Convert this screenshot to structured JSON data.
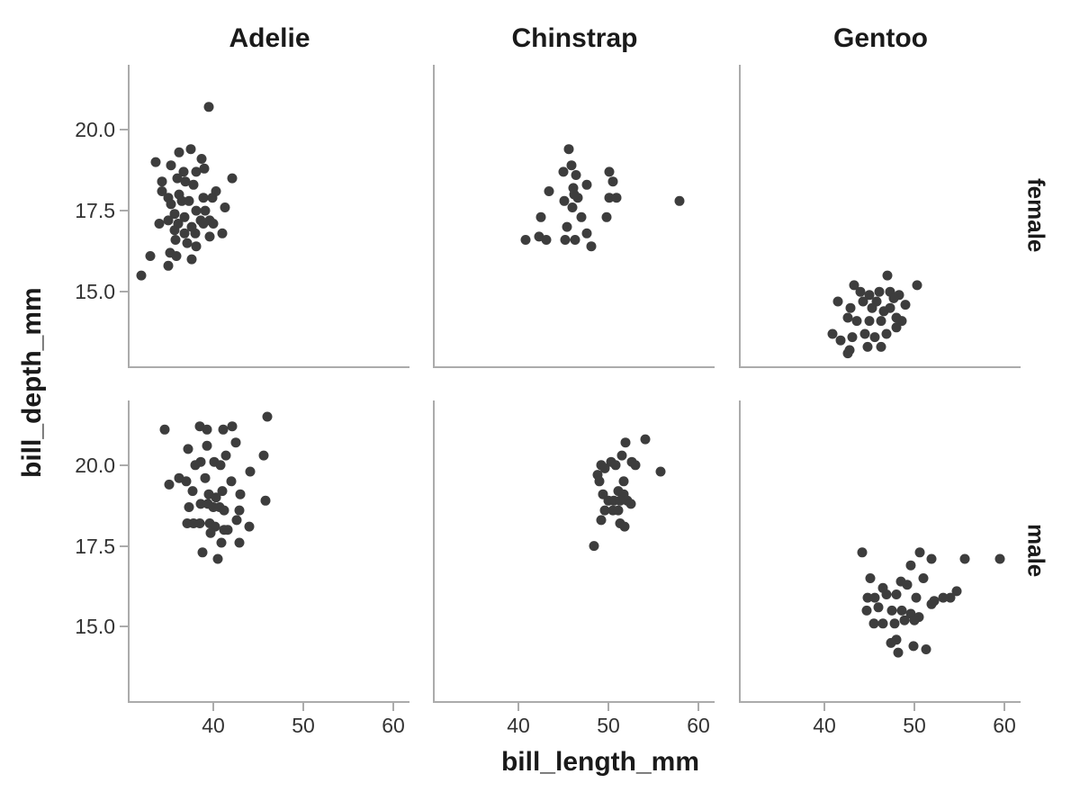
{
  "figure": {
    "background": "#ffffff"
  },
  "chart_data": {
    "type": "scatter",
    "title": "",
    "xlabel": "bill_length_mm",
    "ylabel": "bill_depth_mm",
    "col_facets": [
      "Adelie",
      "Chinstrap",
      "Gentoo"
    ],
    "row_facets": [
      "female",
      "male"
    ],
    "x_domain": [
      30.7,
      61.8
    ],
    "y_domain": [
      12.7,
      22.0
    ],
    "x_ticks": {
      "values": [
        40,
        50,
        60
      ],
      "labels": [
        "40",
        "50",
        "60"
      ]
    },
    "y_ticks": {
      "values": [
        20.0,
        17.5,
        15.0
      ],
      "labels": [
        "20.0",
        "17.5",
        "15.0"
      ]
    },
    "grid": "off",
    "legend": "none",
    "point_color": "#3d3d3d",
    "point_radius": 5.5,
    "axis_color": "#ababab",
    "tick_label_color": "#333333",
    "label_color": "#1a1a1a",
    "panels": [
      {
        "col": "Adelie",
        "row": "female",
        "points": [
          [
            33.6,
            19.0
          ],
          [
            35.3,
            18.9
          ],
          [
            36.2,
            19.3
          ],
          [
            37.5,
            19.4
          ],
          [
            38.7,
            19.1
          ],
          [
            39.0,
            18.8
          ],
          [
            36.7,
            18.7
          ],
          [
            38.1,
            18.7
          ],
          [
            34.3,
            18.4
          ],
          [
            36.0,
            18.5
          ],
          [
            36.9,
            18.4
          ],
          [
            37.8,
            18.3
          ],
          [
            42.1,
            18.5
          ],
          [
            34.3,
            18.1
          ],
          [
            35.0,
            17.9
          ],
          [
            36.2,
            18.0
          ],
          [
            40.3,
            18.1
          ],
          [
            35.3,
            17.7
          ],
          [
            36.5,
            17.8
          ],
          [
            37.3,
            17.8
          ],
          [
            38.9,
            17.9
          ],
          [
            39.9,
            17.9
          ],
          [
            41.3,
            17.6
          ],
          [
            35.7,
            17.4
          ],
          [
            36.8,
            17.3
          ],
          [
            38.1,
            17.5
          ],
          [
            39.1,
            17.5
          ],
          [
            38.6,
            17.2
          ],
          [
            39.6,
            17.2
          ],
          [
            34.0,
            17.1
          ],
          [
            35.0,
            17.2
          ],
          [
            36.1,
            17.1
          ],
          [
            37.6,
            17.0
          ],
          [
            38.9,
            17.1
          ],
          [
            40.0,
            17.1
          ],
          [
            35.7,
            16.9
          ],
          [
            36.8,
            16.8
          ],
          [
            38.0,
            16.8
          ],
          [
            41.0,
            16.8
          ],
          [
            35.8,
            16.6
          ],
          [
            37.1,
            16.5
          ],
          [
            39.6,
            16.7
          ],
          [
            38.1,
            16.4
          ],
          [
            33.0,
            16.1
          ],
          [
            35.2,
            16.2
          ],
          [
            35.9,
            16.1
          ],
          [
            37.6,
            16.0
          ],
          [
            35.0,
            15.8
          ],
          [
            32.0,
            15.5
          ],
          [
            39.5,
            20.7
          ]
        ]
      },
      {
        "col": "Chinstrap",
        "row": "female",
        "points": [
          [
            45.6,
            19.4
          ],
          [
            45.9,
            18.9
          ],
          [
            46.4,
            18.6
          ],
          [
            45.0,
            18.7
          ],
          [
            50.1,
            18.7
          ],
          [
            50.5,
            18.4
          ],
          [
            47.6,
            18.3
          ],
          [
            43.4,
            18.1
          ],
          [
            46.1,
            18.2
          ],
          [
            46.6,
            17.9
          ],
          [
            45.1,
            17.8
          ],
          [
            50.1,
            17.9
          ],
          [
            50.9,
            17.9
          ],
          [
            57.9,
            17.8
          ],
          [
            42.5,
            17.3
          ],
          [
            47.0,
            17.3
          ],
          [
            49.8,
            17.3
          ],
          [
            45.4,
            17.0
          ],
          [
            47.6,
            16.8
          ],
          [
            40.8,
            16.6
          ],
          [
            42.3,
            16.7
          ],
          [
            43.1,
            16.6
          ],
          [
            45.2,
            16.6
          ],
          [
            46.3,
            16.6
          ],
          [
            48.1,
            16.4
          ],
          [
            46.0,
            17.6
          ],
          [
            46.2,
            18.0
          ]
        ]
      },
      {
        "col": "Gentoo",
        "row": "female",
        "points": [
          [
            47.0,
            15.5
          ],
          [
            43.3,
            15.2
          ],
          [
            50.3,
            15.2
          ],
          [
            41.5,
            14.7
          ],
          [
            46.1,
            15.0
          ],
          [
            47.3,
            15.0
          ],
          [
            48.3,
            14.9
          ],
          [
            45.0,
            14.9
          ],
          [
            44.3,
            14.7
          ],
          [
            45.8,
            14.7
          ],
          [
            49.0,
            14.6
          ],
          [
            42.9,
            14.5
          ],
          [
            47.3,
            14.5
          ],
          [
            48.0,
            14.2
          ],
          [
            42.6,
            14.2
          ],
          [
            43.6,
            14.1
          ],
          [
            45.0,
            14.1
          ],
          [
            46.3,
            14.1
          ],
          [
            48.6,
            14.1
          ],
          [
            40.9,
            13.7
          ],
          [
            41.8,
            13.5
          ],
          [
            43.1,
            13.6
          ],
          [
            44.5,
            13.7
          ],
          [
            45.6,
            13.6
          ],
          [
            46.9,
            13.7
          ],
          [
            48.0,
            13.9
          ],
          [
            42.8,
            13.2
          ],
          [
            44.8,
            13.3
          ],
          [
            46.3,
            13.3
          ],
          [
            42.6,
            13.1
          ],
          [
            45.3,
            14.5
          ],
          [
            46.6,
            14.4
          ],
          [
            47.7,
            14.8
          ],
          [
            44.0,
            15.0
          ]
        ]
      },
      {
        "col": "Adelie",
        "row": "male",
        "points": [
          [
            46.0,
            21.5
          ],
          [
            34.6,
            21.1
          ],
          [
            38.5,
            21.2
          ],
          [
            39.3,
            21.1
          ],
          [
            41.1,
            21.1
          ],
          [
            42.1,
            21.2
          ],
          [
            37.2,
            20.5
          ],
          [
            39.3,
            20.6
          ],
          [
            42.5,
            20.7
          ],
          [
            45.6,
            20.3
          ],
          [
            38.0,
            20.0
          ],
          [
            38.6,
            20.1
          ],
          [
            40.1,
            20.1
          ],
          [
            40.8,
            20.0
          ],
          [
            41.4,
            20.3
          ],
          [
            35.1,
            19.4
          ],
          [
            36.2,
            19.6
          ],
          [
            37.0,
            19.5
          ],
          [
            37.7,
            19.2
          ],
          [
            39.1,
            19.6
          ],
          [
            42.0,
            19.5
          ],
          [
            43.0,
            19.1
          ],
          [
            44.1,
            19.8
          ],
          [
            45.8,
            18.9
          ],
          [
            39.5,
            19.1
          ],
          [
            40.3,
            19.0
          ],
          [
            41.0,
            19.2
          ],
          [
            37.3,
            18.7
          ],
          [
            38.6,
            18.8
          ],
          [
            39.4,
            18.8
          ],
          [
            40.0,
            18.7
          ],
          [
            40.7,
            18.7
          ],
          [
            41.2,
            18.6
          ],
          [
            42.9,
            18.6
          ],
          [
            37.1,
            18.2
          ],
          [
            37.8,
            18.2
          ],
          [
            38.5,
            18.2
          ],
          [
            39.6,
            18.2
          ],
          [
            40.2,
            18.1
          ],
          [
            41.6,
            18.0
          ],
          [
            42.6,
            18.3
          ],
          [
            44.0,
            18.1
          ],
          [
            39.7,
            17.9
          ],
          [
            41.2,
            18.0
          ],
          [
            42.9,
            17.6
          ],
          [
            40.9,
            17.6
          ],
          [
            38.8,
            17.3
          ],
          [
            40.5,
            17.1
          ]
        ]
      },
      {
        "col": "Chinstrap",
        "row": "male",
        "points": [
          [
            54.1,
            20.8
          ],
          [
            51.9,
            20.7
          ],
          [
            51.5,
            20.3
          ],
          [
            52.6,
            20.1
          ],
          [
            53.0,
            20.0
          ],
          [
            50.3,
            20.1
          ],
          [
            49.2,
            20.0
          ],
          [
            49.6,
            19.9
          ],
          [
            48.8,
            19.7
          ],
          [
            50.8,
            20.0
          ],
          [
            55.8,
            19.8
          ],
          [
            49.0,
            19.5
          ],
          [
            51.7,
            19.5
          ],
          [
            49.4,
            19.1
          ],
          [
            51.1,
            19.2
          ],
          [
            51.7,
            19.1
          ],
          [
            52.1,
            18.9
          ],
          [
            50.0,
            18.9
          ],
          [
            50.6,
            18.9
          ],
          [
            51.3,
            18.9
          ],
          [
            52.5,
            18.8
          ],
          [
            49.6,
            18.6
          ],
          [
            50.5,
            18.6
          ],
          [
            51.1,
            18.6
          ],
          [
            49.2,
            18.3
          ],
          [
            51.3,
            18.2
          ],
          [
            51.8,
            18.1
          ],
          [
            48.4,
            17.5
          ]
        ]
      },
      {
        "col": "Gentoo",
        "row": "male",
        "points": [
          [
            44.2,
            17.3
          ],
          [
            50.6,
            17.3
          ],
          [
            51.9,
            17.1
          ],
          [
            55.6,
            17.1
          ],
          [
            59.5,
            17.1
          ],
          [
            49.6,
            16.9
          ],
          [
            45.1,
            16.5
          ],
          [
            46.5,
            16.2
          ],
          [
            48.5,
            16.4
          ],
          [
            49.2,
            16.3
          ],
          [
            51.0,
            16.5
          ],
          [
            44.8,
            15.9
          ],
          [
            45.6,
            15.9
          ],
          [
            46.9,
            16.0
          ],
          [
            48.0,
            16.0
          ],
          [
            50.2,
            15.9
          ],
          [
            52.2,
            15.8
          ],
          [
            54.0,
            15.9
          ],
          [
            54.7,
            16.1
          ],
          [
            53.2,
            15.9
          ],
          [
            44.7,
            15.5
          ],
          [
            46.0,
            15.6
          ],
          [
            47.5,
            15.5
          ],
          [
            48.6,
            15.5
          ],
          [
            49.6,
            15.4
          ],
          [
            50.5,
            15.3
          ],
          [
            51.9,
            15.7
          ],
          [
            45.5,
            15.1
          ],
          [
            46.5,
            15.1
          ],
          [
            47.8,
            15.1
          ],
          [
            48.9,
            15.2
          ],
          [
            50.0,
            15.2
          ],
          [
            48.0,
            14.6
          ],
          [
            47.4,
            14.5
          ],
          [
            49.9,
            14.4
          ],
          [
            51.3,
            14.3
          ],
          [
            48.2,
            14.2
          ]
        ]
      }
    ]
  }
}
